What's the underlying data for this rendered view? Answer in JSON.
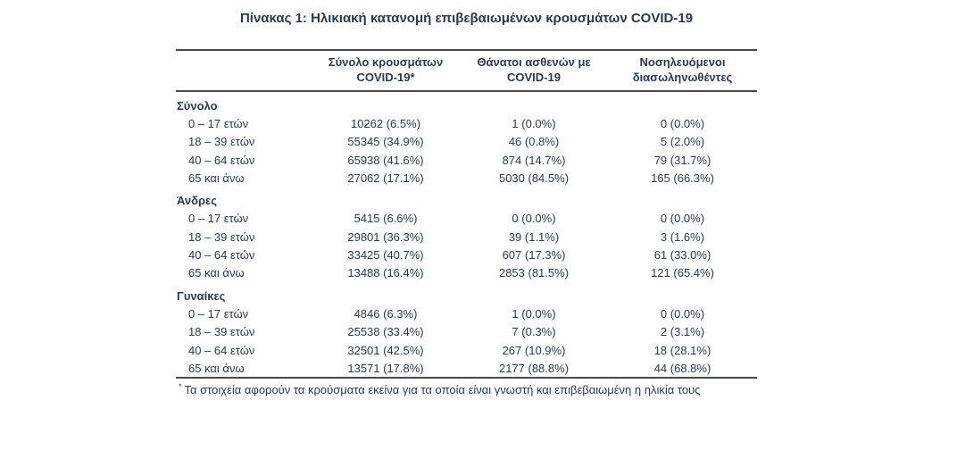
{
  "page": {
    "title": "Πίνακας 1: Ηλικιακή κατανομή επιβεβαιωμένων κρουσμάτων COVID-19"
  },
  "colors": {
    "text": "#2b3a4c",
    "rule": "#4a4a4a",
    "background": "#ffffff"
  },
  "table": {
    "headers": {
      "cases": {
        "line1": "Σύνολο κρουσμάτων",
        "line2": "COVID-19*"
      },
      "deaths": {
        "line1": "Θάνατοι ασθενών με",
        "line2": "COVID-19"
      },
      "intubated": {
        "line1": "Νοσηλευόμενοι",
        "line2": "διασωληνωθέντες"
      }
    },
    "sections": [
      {
        "label": "Σύνολο",
        "rows": [
          {
            "age": "0 – 17 ετών",
            "cases": "10262 (6.5%)",
            "deaths": "1 (0.0%)",
            "intubated": "0 (0.0%)"
          },
          {
            "age": "18 – 39 ετών",
            "cases": "55345 (34.9%)",
            "deaths": "46 (0.8%)",
            "intubated": "5 (2.0%)"
          },
          {
            "age": "40 – 64 ετών",
            "cases": "65938 (41.6%)",
            "deaths": "874 (14.7%)",
            "intubated": "79 (31.7%)"
          },
          {
            "age": "65 και άνω",
            "cases": "27062 (17.1%)",
            "deaths": "5030 (84.5%)",
            "intubated": "165 (66.3%)"
          }
        ]
      },
      {
        "label": "Άνδρες",
        "rows": [
          {
            "age": "0 – 17 ετών",
            "cases": "5415 (6.6%)",
            "deaths": "0 (0.0%)",
            "intubated": "0 (0.0%)"
          },
          {
            "age": "18 – 39 ετών",
            "cases": "29801 (36.3%)",
            "deaths": "39 (1.1%)",
            "intubated": "3 (1.6%)"
          },
          {
            "age": "40 – 64 ετών",
            "cases": "33425 (40.7%)",
            "deaths": "607 (17.3%)",
            "intubated": "61 (33.0%)"
          },
          {
            "age": "65 και άνω",
            "cases": "13488 (16.4%)",
            "deaths": "2853 (81.5%)",
            "intubated": "121 (65.4%)"
          }
        ]
      },
      {
        "label": "Γυναίκες",
        "rows": [
          {
            "age": "0 – 17 ετών",
            "cases": "4846 (6.3%)",
            "deaths": "1 (0.0%)",
            "intubated": "0 (0.0%)"
          },
          {
            "age": "18 – 39 ετών",
            "cases": "25538 (33.4%)",
            "deaths": "7 (0.3%)",
            "intubated": "2 (3.1%)"
          },
          {
            "age": "40 – 64 ετών",
            "cases": "32501 (42.5%)",
            "deaths": "267 (10.9%)",
            "intubated": "18 (28.1%)"
          },
          {
            "age": "65 και άνω",
            "cases": "13571 (17.8%)",
            "deaths": "2177 (88.8%)",
            "intubated": "44 (68.8%)"
          }
        ]
      }
    ]
  },
  "footnote": {
    "marker": "*",
    "text": "Τα στοιχεία αφορούν τα κρούσματα εκείνα για τα οποία είναι γνωστή και επιβεβαιωμένη η ηλικία τους"
  }
}
